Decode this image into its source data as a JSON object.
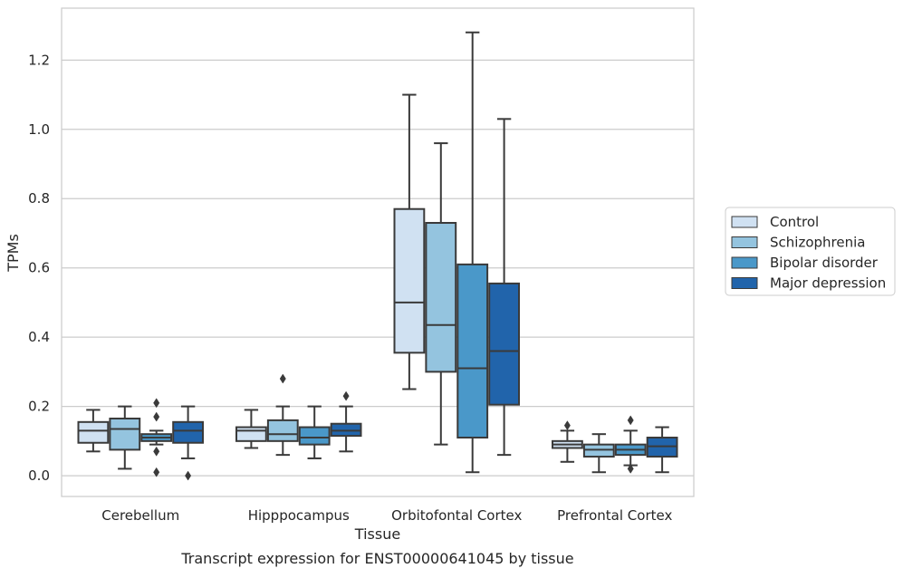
{
  "chart_data": {
    "type": "box",
    "title": "",
    "caption": "Transcript expression for ENST00000641045 by tissue",
    "xlabel": "Tissue",
    "ylabel": "TPMs",
    "ylim": [
      -0.06,
      1.35
    ],
    "yticks": [
      0.0,
      0.2,
      0.4,
      0.6,
      0.8,
      1.0,
      1.2
    ],
    "ytick_labels": [
      "0.0",
      "0.2",
      "0.4",
      "0.6",
      "0.8",
      "1.0",
      "1.2"
    ],
    "grid": "horizontal",
    "legend_position": "right",
    "categories": [
      "Cerebellum",
      "Hipppocampus",
      "Orbitofontal Cortex",
      "Prefrontal Cortex"
    ],
    "series": [
      {
        "name": "Control",
        "color": "#d0e1f2",
        "boxes": [
          {
            "whislo": 0.07,
            "q1": 0.095,
            "med": 0.13,
            "q3": 0.155,
            "whishi": 0.19,
            "fliers": []
          },
          {
            "whislo": 0.08,
            "q1": 0.1,
            "med": 0.13,
            "q3": 0.14,
            "whishi": 0.19,
            "fliers": []
          },
          {
            "whislo": 0.25,
            "q1": 0.355,
            "med": 0.5,
            "q3": 0.77,
            "whishi": 1.1,
            "fliers": []
          },
          {
            "whislo": 0.04,
            "q1": 0.08,
            "med": 0.09,
            "q3": 0.1,
            "whishi": 0.13,
            "fliers": [
              0.145
            ]
          }
        ]
      },
      {
        "name": "Schizophrenia",
        "color": "#94c4df",
        "boxes": [
          {
            "whislo": 0.02,
            "q1": 0.075,
            "med": 0.135,
            "q3": 0.165,
            "whishi": 0.2,
            "fliers": []
          },
          {
            "whislo": 0.06,
            "q1": 0.1,
            "med": 0.12,
            "q3": 0.16,
            "whishi": 0.2,
            "fliers": [
              0.28
            ]
          },
          {
            "whislo": 0.09,
            "q1": 0.3,
            "med": 0.435,
            "q3": 0.73,
            "whishi": 0.96,
            "fliers": []
          },
          {
            "whislo": 0.01,
            "q1": 0.055,
            "med": 0.075,
            "q3": 0.09,
            "whishi": 0.12,
            "fliers": []
          }
        ]
      },
      {
        "name": "Bipolar disorder",
        "color": "#4a98c9",
        "boxes": [
          {
            "whislo": 0.09,
            "q1": 0.1,
            "med": 0.11,
            "q3": 0.12,
            "whishi": 0.13,
            "fliers": [
              0.21,
              0.17,
              0.07,
              0.01
            ]
          },
          {
            "whislo": 0.05,
            "q1": 0.09,
            "med": 0.11,
            "q3": 0.14,
            "whishi": 0.2,
            "fliers": []
          },
          {
            "whislo": 0.01,
            "q1": 0.11,
            "med": 0.31,
            "q3": 0.61,
            "whishi": 1.28,
            "fliers": []
          },
          {
            "whislo": 0.03,
            "q1": 0.06,
            "med": 0.075,
            "q3": 0.09,
            "whishi": 0.13,
            "fliers": [
              0.16,
              0.02
            ]
          }
        ]
      },
      {
        "name": "Major depression",
        "color": "#2164ab",
        "boxes": [
          {
            "whislo": 0.05,
            "q1": 0.095,
            "med": 0.13,
            "q3": 0.155,
            "whishi": 0.2,
            "fliers": [
              0.0
            ]
          },
          {
            "whislo": 0.07,
            "q1": 0.115,
            "med": 0.13,
            "q3": 0.15,
            "whishi": 0.2,
            "fliers": [
              0.23
            ]
          },
          {
            "whislo": 0.06,
            "q1": 0.205,
            "med": 0.36,
            "q3": 0.555,
            "whishi": 1.03,
            "fliers": []
          },
          {
            "whislo": 0.01,
            "q1": 0.055,
            "med": 0.085,
            "q3": 0.11,
            "whishi": 0.14,
            "fliers": []
          }
        ]
      }
    ]
  }
}
